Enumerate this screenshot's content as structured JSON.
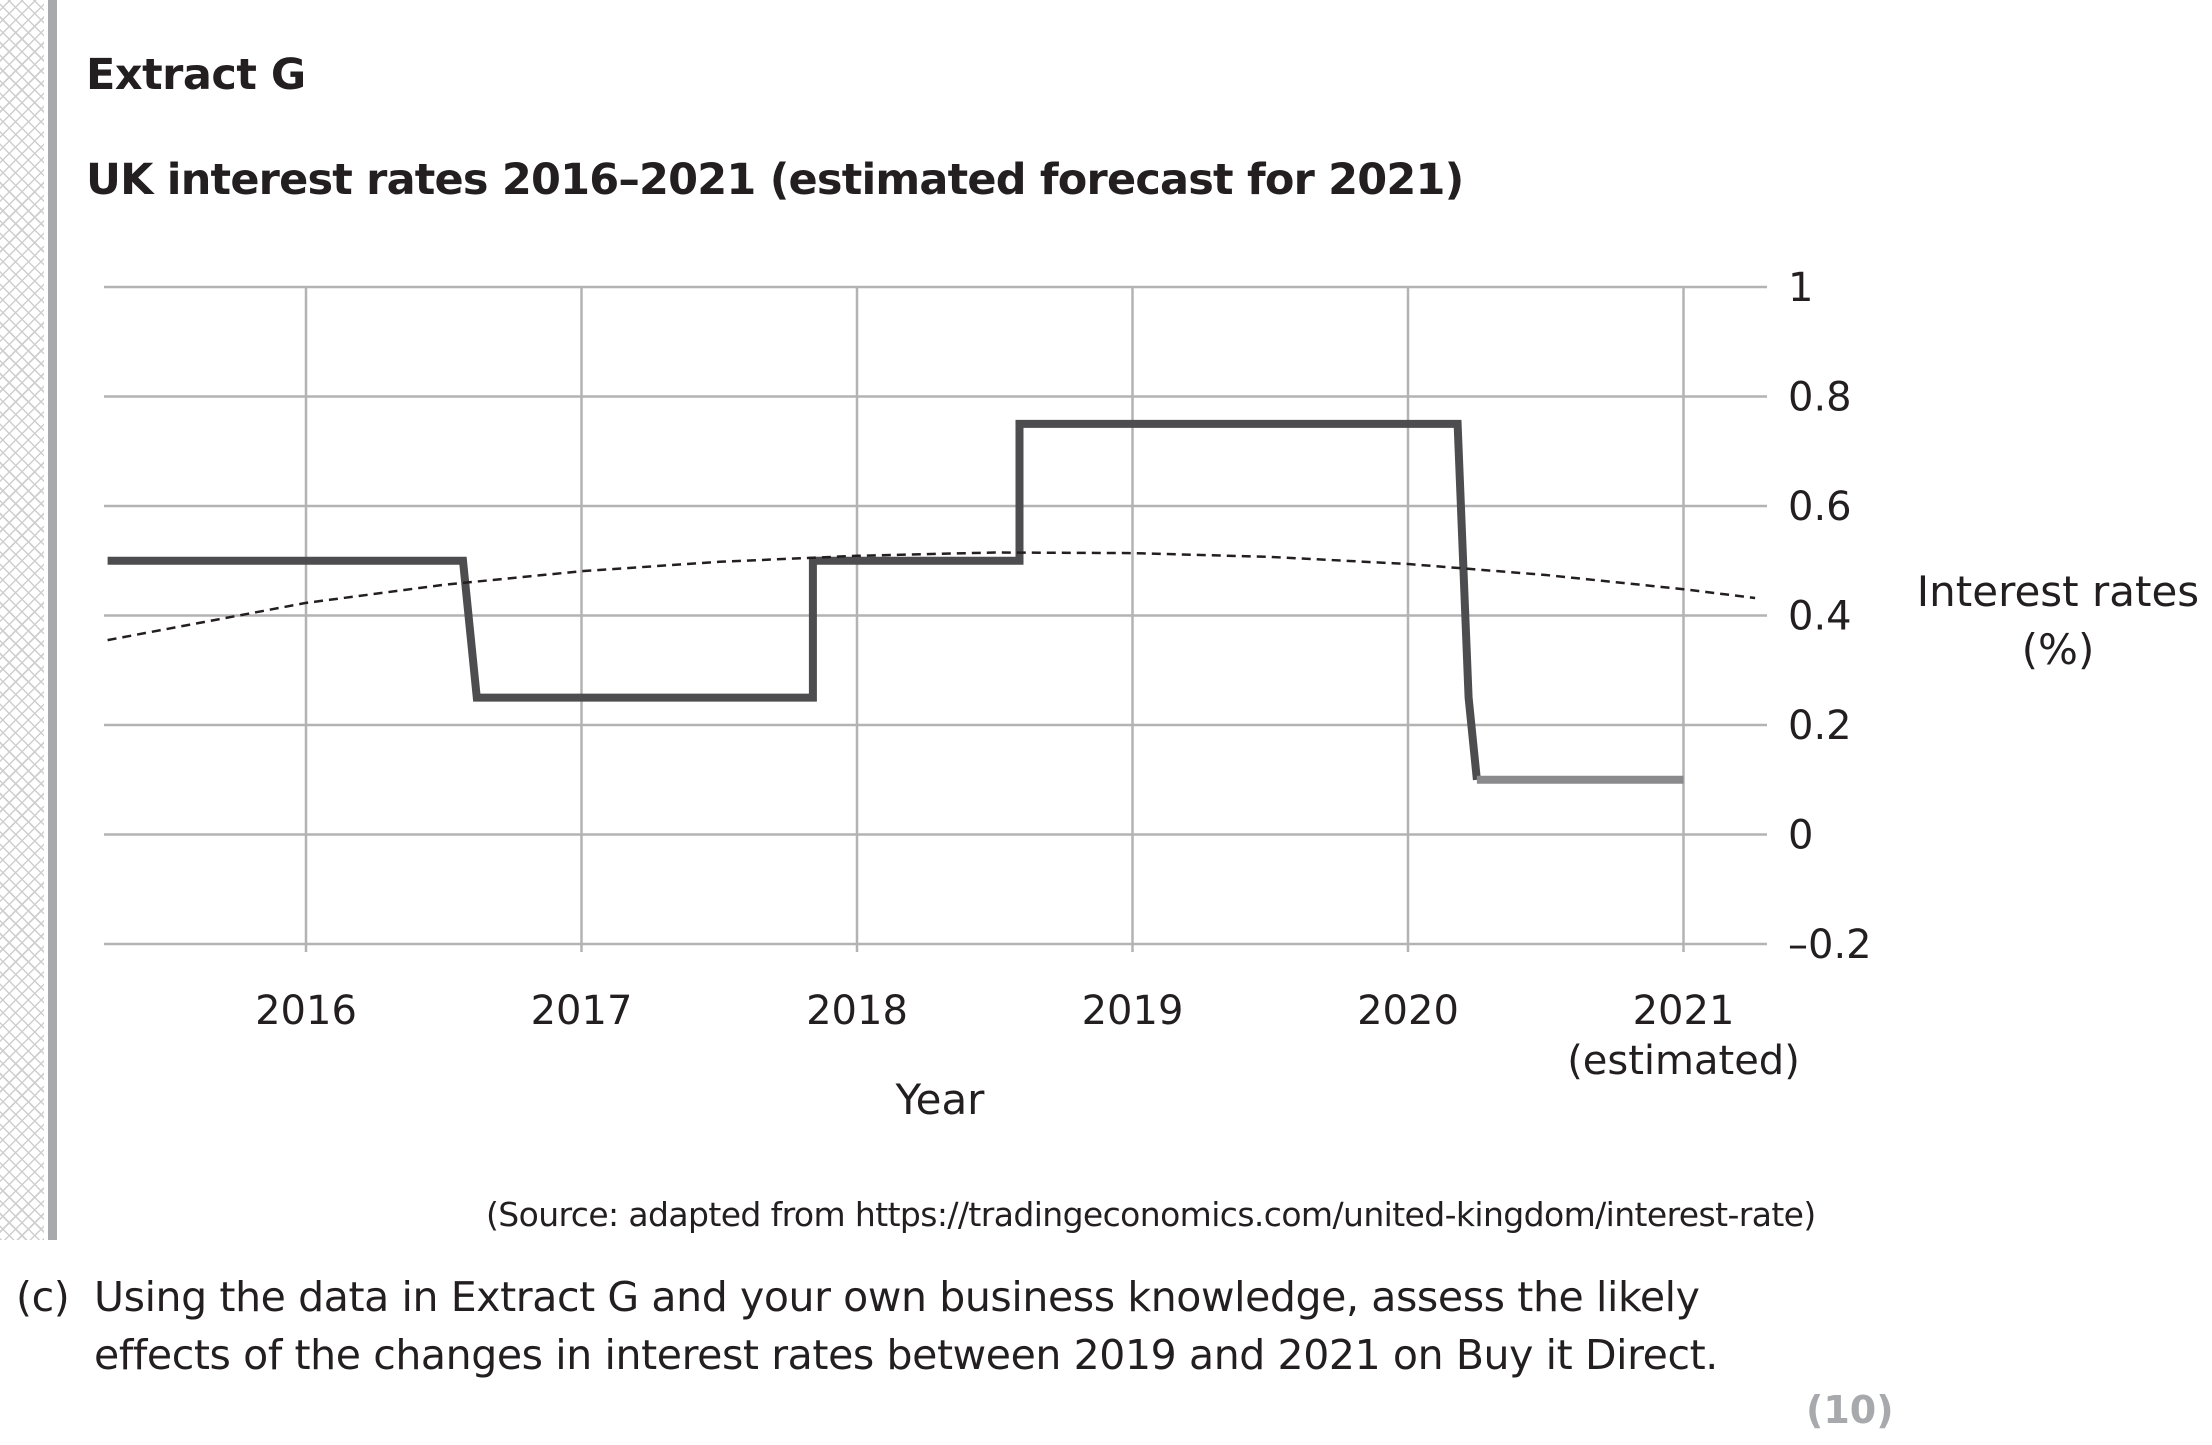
{
  "extract_label": "Extract G",
  "title": "UK interest rates 2016–2021 (estimated forecast for 2021)",
  "source": "(Source: adapted from  https://tradingeconomics.com/united-kingdom/interest-rate)",
  "question": {
    "part": "(c)",
    "lines": [
      "Using the data in Extract G and your own business knowledge, assess the likely",
      "effects of the changes in interest rates between 2019 and 2021 on Buy it Direct."
    ],
    "marks": "(10)"
  },
  "chart_data": {
    "type": "line",
    "xlabel": "Year",
    "ylabel": [
      "Interest rates",
      "(%)"
    ],
    "x_ticks": [
      "2016",
      "2017",
      "2018",
      "2019",
      "2020",
      "2021"
    ],
    "x_tick_sublabels": {
      "2021": "(estimated)"
    },
    "xlim": [
      2015.28,
      2021.34
    ],
    "ylim": [
      -0.2,
      1
    ],
    "y_ticks": [
      1,
      0.8,
      0.6,
      0.4,
      0.2,
      0,
      -0.2
    ],
    "y_tick_labels": [
      "1",
      "0.8",
      "0.6",
      "0.4",
      "0.2",
      "0",
      "–0.2"
    ],
    "y_axis_side": "right",
    "grid": true,
    "legend": "none",
    "series": [
      {
        "role": "actual",
        "style": "solid-step",
        "color": "#4d4d4f",
        "x": [
          2015.28,
          2016.57,
          2016.62,
          2017.84,
          2017.84,
          2018.59,
          2018.59,
          2020.18,
          2020.22,
          2020.25
        ],
        "y": [
          0.5,
          0.5,
          0.25,
          0.25,
          0.5,
          0.5,
          0.75,
          0.75,
          0.25,
          0.1
        ]
      },
      {
        "role": "estimated",
        "style": "solid",
        "color": "#8a8a8d",
        "x": [
          2020.25,
          2021.0
        ],
        "y": [
          0.1,
          0.1
        ]
      },
      {
        "role": "trend",
        "style": "dashed",
        "color": "#231f20",
        "x": [
          2015.28,
          2016.0,
          2016.5,
          2017.0,
          2017.5,
          2018.0,
          2018.5,
          2019.0,
          2019.5,
          2020.0,
          2020.5,
          2021.0,
          2021.26
        ],
        "y": [
          0.355,
          0.423,
          0.456,
          0.481,
          0.498,
          0.509,
          0.515,
          0.514,
          0.507,
          0.494,
          0.474,
          0.448,
          0.432
        ]
      }
    ]
  }
}
